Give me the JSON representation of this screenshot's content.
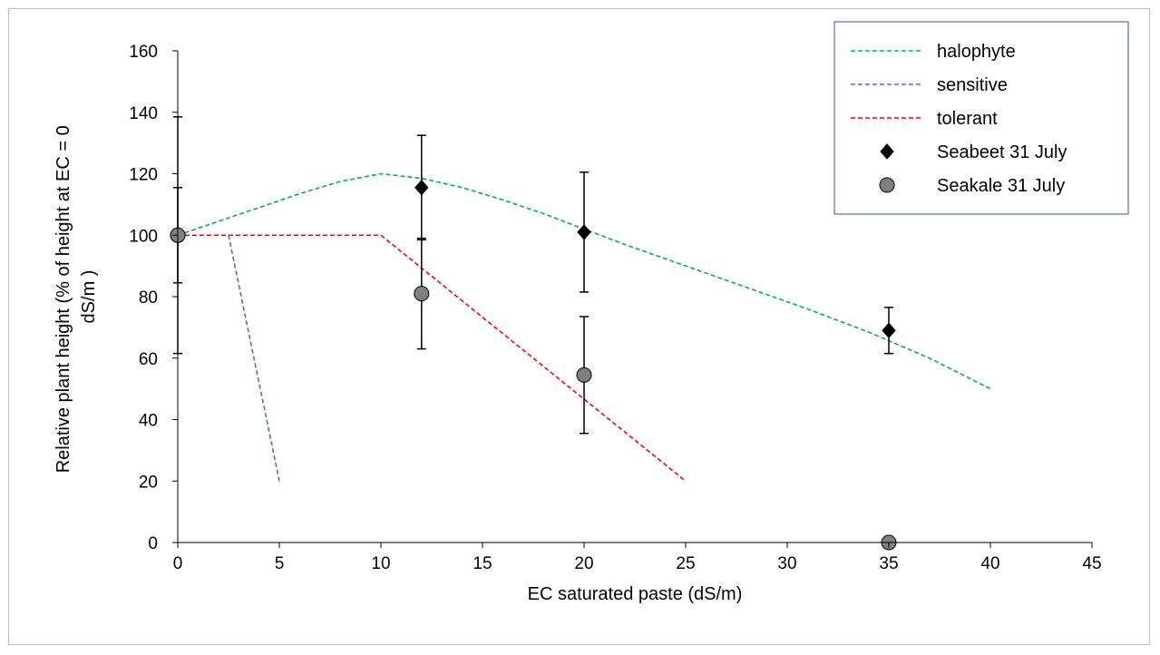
{
  "chart_data": {
    "type": "scatter",
    "title": "",
    "xlabel": "EC saturated paste (dS/m)",
    "ylabel_lines": [
      "Relative plant height (% of height at EC = 0",
      "dS/m )"
    ],
    "xlim": [
      0,
      45
    ],
    "ylim": [
      0,
      160
    ],
    "xticks": [
      0,
      5,
      10,
      15,
      20,
      25,
      30,
      35,
      40,
      45
    ],
    "yticks": [
      0,
      20,
      40,
      60,
      80,
      100,
      120,
      140,
      160
    ],
    "grid": false,
    "legend_position": "top-right",
    "series": [
      {
        "name": "halophyte",
        "kind": "line",
        "dash": true,
        "color": "#00b050",
        "points": [
          [
            0,
            100
          ],
          [
            2,
            104.5
          ],
          [
            4,
            109
          ],
          [
            6,
            113.5
          ],
          [
            8,
            117.5
          ],
          [
            10,
            120
          ],
          [
            12,
            118.5
          ],
          [
            14,
            115.5
          ],
          [
            16,
            111.5
          ],
          [
            18,
            107
          ],
          [
            20,
            102
          ],
          [
            22,
            97
          ],
          [
            25,
            90
          ],
          [
            28,
            83
          ],
          [
            31,
            76
          ],
          [
            34,
            68.5
          ],
          [
            37,
            60
          ],
          [
            40,
            50
          ]
        ]
      },
      {
        "name": "sensitive",
        "kind": "line",
        "dash": true,
        "color": "#4472c4",
        "points": [
          [
            2.5,
            100
          ],
          [
            5,
            20
          ]
        ]
      },
      {
        "name": "tolerant",
        "kind": "line",
        "dash": true,
        "color": "#ff0000",
        "points": [
          [
            0,
            100
          ],
          [
            10,
            100
          ],
          [
            25,
            20
          ]
        ]
      },
      {
        "name": "Seabeet 31 July",
        "kind": "marker",
        "marker": "diamond",
        "color": "#000000",
        "points": [
          {
            "x": 12,
            "y": 115.5,
            "err": 17
          },
          {
            "x": 20,
            "y": 101,
            "err": 19.5
          },
          {
            "x": 35,
            "y": 69,
            "err": 7.5
          }
        ]
      },
      {
        "name": "Seakale 31 July",
        "kind": "marker",
        "marker": "circle",
        "color": "#808080",
        "points": [
          {
            "x": 0,
            "y": 100,
            "err": 38.5
          },
          {
            "x": 0,
            "y": 100,
            "err": 15.5
          },
          {
            "x": 12,
            "y": 81,
            "err": 18
          },
          {
            "x": 20,
            "y": 54.5,
            "err": 19
          },
          {
            "x": 35,
            "y": 0,
            "err": 0
          }
        ]
      }
    ]
  }
}
